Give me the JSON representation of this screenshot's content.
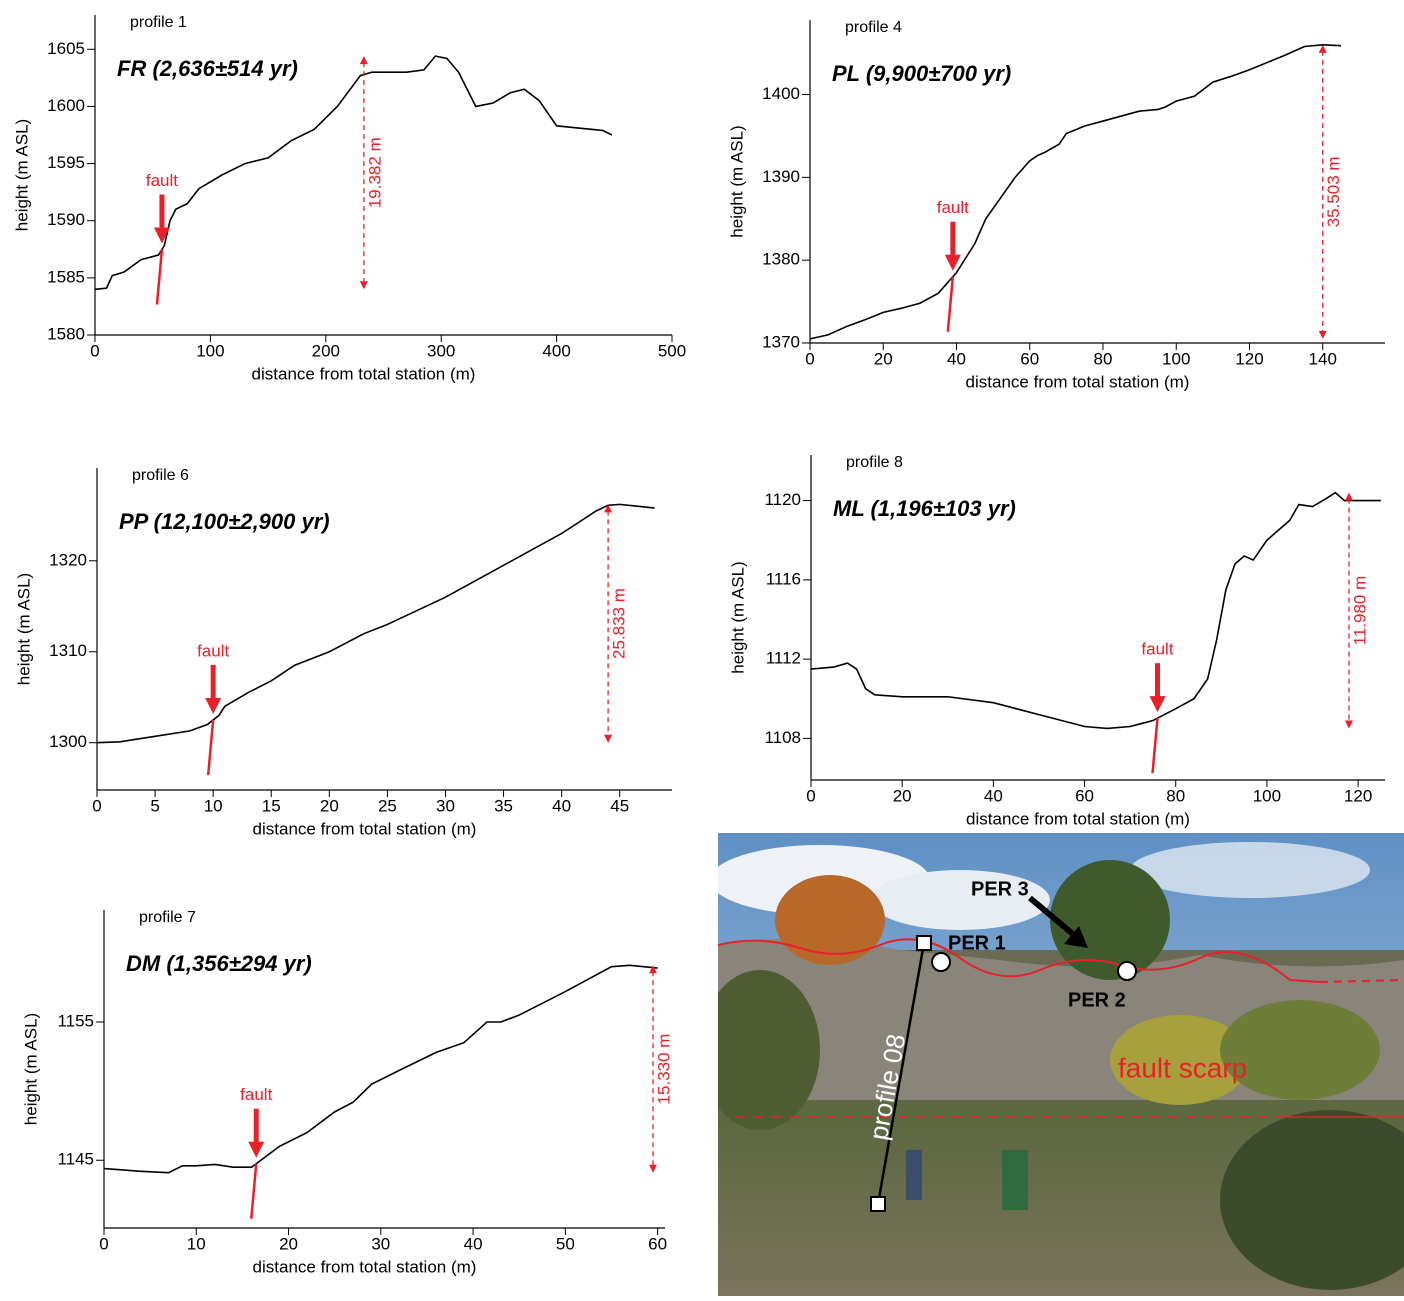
{
  "chart_data": [
    {
      "type": "line",
      "title": "profile 1",
      "subtitle": "FR (2,636±514 yr)",
      "x": [
        0,
        10,
        15,
        25,
        40,
        55,
        60,
        65,
        70,
        80,
        90,
        110,
        130,
        150,
        170,
        190,
        210,
        230,
        240,
        270,
        285,
        295,
        305,
        315,
        330,
        345,
        360,
        372,
        385,
        400,
        420,
        440,
        448
      ],
      "values": [
        1584,
        1584.1,
        1585.2,
        1585.5,
        1586.6,
        1587,
        1587.8,
        1590,
        1591,
        1591.5,
        1592.8,
        1594,
        1595,
        1595.5,
        1597,
        1598,
        1600,
        1602.7,
        1603,
        1603,
        1603.2,
        1604.4,
        1604.2,
        1603,
        1600,
        1600.3,
        1601.2,
        1601.5,
        1600.5,
        1598.3,
        1598.1,
        1597.9,
        1597.5
      ],
      "color": "#000000",
      "xlim": [
        0,
        500
      ],
      "ylim": [
        1580,
        1608
      ],
      "xticks": [
        0,
        100,
        200,
        300,
        400,
        500
      ],
      "yticks": [
        1580,
        1585,
        1590,
        1595,
        1600,
        1605
      ],
      "xlabel": "distance from total station (m)",
      "ylabel": "height (m ASL)",
      "annotations": [
        {
          "text": "fault",
          "x": 58
        },
        {
          "text": "19.382 m",
          "x": 233
        }
      ]
    },
    {
      "type": "line",
      "title": "profile 4",
      "subtitle": "PL (9,900±700 yr)",
      "x": [
        0,
        5,
        10,
        15,
        20,
        25,
        30,
        35,
        40,
        45,
        48,
        52,
        56,
        60,
        62,
        64,
        68,
        70,
        75,
        80,
        90,
        95,
        97,
        100,
        105,
        110,
        115,
        120,
        130,
        135,
        140,
        145
      ],
      "values": [
        1370.5,
        1371,
        1372,
        1372.8,
        1373.7,
        1374.2,
        1374.8,
        1376,
        1378.5,
        1382,
        1385,
        1387.5,
        1390,
        1392,
        1392.6,
        1393,
        1394,
        1395.3,
        1396.2,
        1396.8,
        1398,
        1398.2,
        1398.5,
        1399.2,
        1399.8,
        1401.5,
        1402.2,
        1403,
        1404.8,
        1405.8,
        1406,
        1405.9
      ],
      "color": "#000000",
      "xlim": [
        0,
        157
      ],
      "ylim": [
        1370,
        1409
      ],
      "xticks": [
        0,
        20,
        40,
        60,
        80,
        100,
        120,
        140
      ],
      "yticks": [
        1370,
        1380,
        1390,
        1400
      ],
      "xlabel": "distance from total station (m)",
      "ylabel": "height (m ASL)",
      "annotations": [
        {
          "text": "fault",
          "x": 39
        },
        {
          "text": "35.503 m",
          "x": 140
        }
      ]
    },
    {
      "type": "line",
      "title": "profile 6",
      "subtitle": "PP (12,100±2,900 yr)",
      "x": [
        0,
        2,
        5,
        8,
        9.5,
        10.5,
        11,
        13,
        15,
        17,
        20,
        23,
        25,
        30,
        35,
        40,
        43,
        44,
        45,
        48
      ],
      "values": [
        1300,
        1300.1,
        1300.7,
        1301.3,
        1302,
        1303,
        1304,
        1305.5,
        1306.8,
        1308.5,
        1310,
        1312,
        1313,
        1316,
        1319.5,
        1323,
        1325.5,
        1326.1,
        1326.2,
        1325.8
      ],
      "color": "#000000",
      "xlim": [
        0,
        49.5
      ],
      "ylim": [
        1294.8,
        1330.2
      ],
      "xticks": [
        0,
        5,
        10,
        15,
        20,
        25,
        30,
        35,
        40,
        45
      ],
      "yticks": [
        1300,
        1310,
        1320
      ],
      "xlabel": "distance from total station (m)",
      "ylabel": "height (m ASL)",
      "annotations": [
        {
          "text": "fault",
          "x": 10
        },
        {
          "text": "25.833 m",
          "x": 44
        }
      ]
    },
    {
      "type": "line",
      "title": "profile 8",
      "subtitle": "ML (1,196±103 yr)",
      "x": [
        0,
        5,
        8,
        10,
        12,
        14,
        20,
        30,
        40,
        50,
        60,
        65,
        70,
        75,
        80,
        84,
        87,
        89,
        91,
        93,
        95,
        97,
        100,
        102,
        105,
        107,
        110,
        113,
        115,
        117,
        125
      ],
      "values": [
        1111.5,
        1111.6,
        1111.8,
        1111.5,
        1110.5,
        1110.2,
        1110.1,
        1110.1,
        1109.8,
        1109.2,
        1108.6,
        1108.5,
        1108.6,
        1108.9,
        1109.5,
        1110,
        1111,
        1113,
        1115.5,
        1116.8,
        1117.2,
        1117,
        1118,
        1118.4,
        1119,
        1119.8,
        1119.7,
        1120.1,
        1120.4,
        1120,
        1120
      ],
      "color": "#000000",
      "xlim": [
        0,
        125.9
      ],
      "ylim": [
        1105.9,
        1122.3
      ],
      "xticks": [
        0,
        20,
        40,
        60,
        80,
        100,
        120
      ],
      "yticks": [
        1108,
        1112,
        1116,
        1120
      ],
      "xlabel": "distance from total station (m)",
      "ylabel": "height (m ASL)",
      "annotations": [
        {
          "text": "fault",
          "x": 76
        },
        {
          "text": "11.980 m",
          "x": 118
        }
      ]
    },
    {
      "type": "line",
      "title": "profile 7",
      "subtitle": "DM (1,356±294 yr)",
      "x": [
        0,
        4,
        7,
        8.5,
        10,
        12,
        14,
        16,
        17,
        19,
        22,
        25,
        27,
        29,
        32,
        36,
        39,
        41.5,
        43,
        45,
        50,
        55,
        57,
        60
      ],
      "values": [
        1144.4,
        1144.2,
        1144.1,
        1144.6,
        1144.6,
        1144.7,
        1144.5,
        1144.5,
        1145,
        1146,
        1147,
        1148.5,
        1149.2,
        1150.5,
        1151.5,
        1152.8,
        1153.5,
        1155,
        1155,
        1155.5,
        1157.2,
        1159,
        1159.1,
        1158.9
      ],
      "color": "#000000",
      "xlim": [
        0,
        60.8
      ],
      "ylim": [
        1140.1,
        1163.1
      ],
      "xticks": [
        0,
        10,
        20,
        30,
        40,
        50,
        60
      ],
      "yticks": [
        1145,
        1155
      ],
      "xlabel": "distance from total station (m)",
      "ylabel": "height (m ASL)",
      "annotations": [
        {
          "text": "fault",
          "x": 16.5
        },
        {
          "text": "15.330 m",
          "x": 59.5
        }
      ]
    }
  ],
  "photo": {
    "labels": {
      "per3": "PER 3",
      "per1": "PER 1",
      "per2": "PER 2",
      "profile": "profile 08",
      "scarp": "fault scarp"
    }
  }
}
